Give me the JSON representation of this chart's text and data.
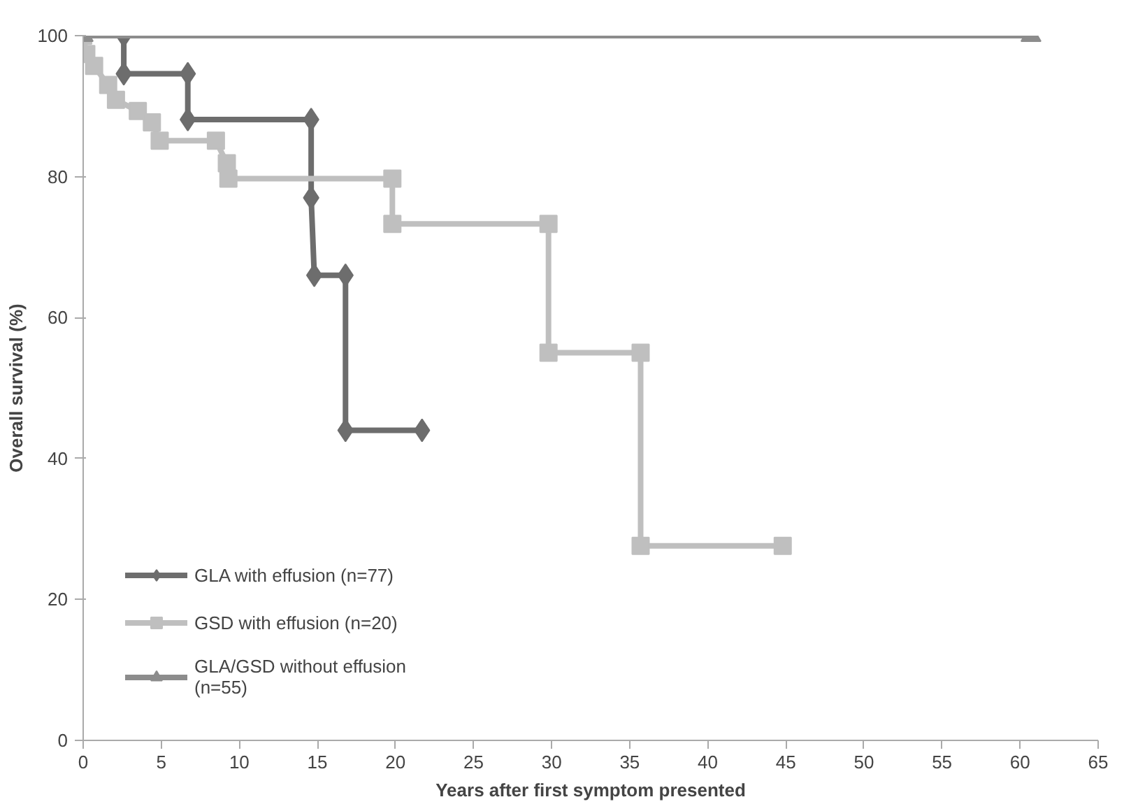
{
  "chart_data": {
    "type": "line",
    "xlabel": "Years after first symptom presented",
    "ylabel": "Overall survival (%)",
    "xlim": [
      0,
      65
    ],
    "xticks": [
      0,
      5,
      10,
      15,
      20,
      25,
      30,
      35,
      40,
      45,
      50,
      55,
      60,
      65
    ],
    "ylim": [
      0,
      100
    ],
    "yticks": [
      0,
      20,
      40,
      60,
      80,
      100
    ],
    "grid": false,
    "legend": "bottom left",
    "line_style": "solid",
    "series": [
      {
        "name": "GLA with effusion (n=77)",
        "color": "#6d6d6d",
        "marker": "diamond",
        "x": [
          2.6,
          2.6,
          6.7,
          6.7,
          14.6,
          14.6,
          14.8,
          16.8,
          16.8,
          21.7
        ],
        "values": [
          100,
          94.6,
          94.6,
          88.1,
          88.1,
          77,
          66,
          66,
          44,
          44
        ]
      },
      {
        "name": "GSD with effusion (n=20)",
        "color": "#bfbfbf",
        "marker": "square",
        "x": [
          0,
          0.2,
          0.7,
          1.6,
          2.1,
          3.5,
          4.4,
          4.9,
          8.5,
          9.2,
          9.3,
          19.8,
          19.8,
          29.8,
          29.8,
          35.7,
          35.7,
          44.8
        ],
        "values": [
          100,
          97.4,
          95.7,
          93,
          90.9,
          89.3,
          87.7,
          85.1,
          85.1,
          81.9,
          79.7,
          79.7,
          73.3,
          73.3,
          55,
          55,
          27.6,
          27.6
        ]
      },
      {
        "name": "GLA/GSD without effusion\n(n=55)",
        "color": "#8c8c8c",
        "marker": "triangle",
        "x": [
          0,
          60.7
        ],
        "values": [
          100,
          100
        ]
      }
    ]
  }
}
